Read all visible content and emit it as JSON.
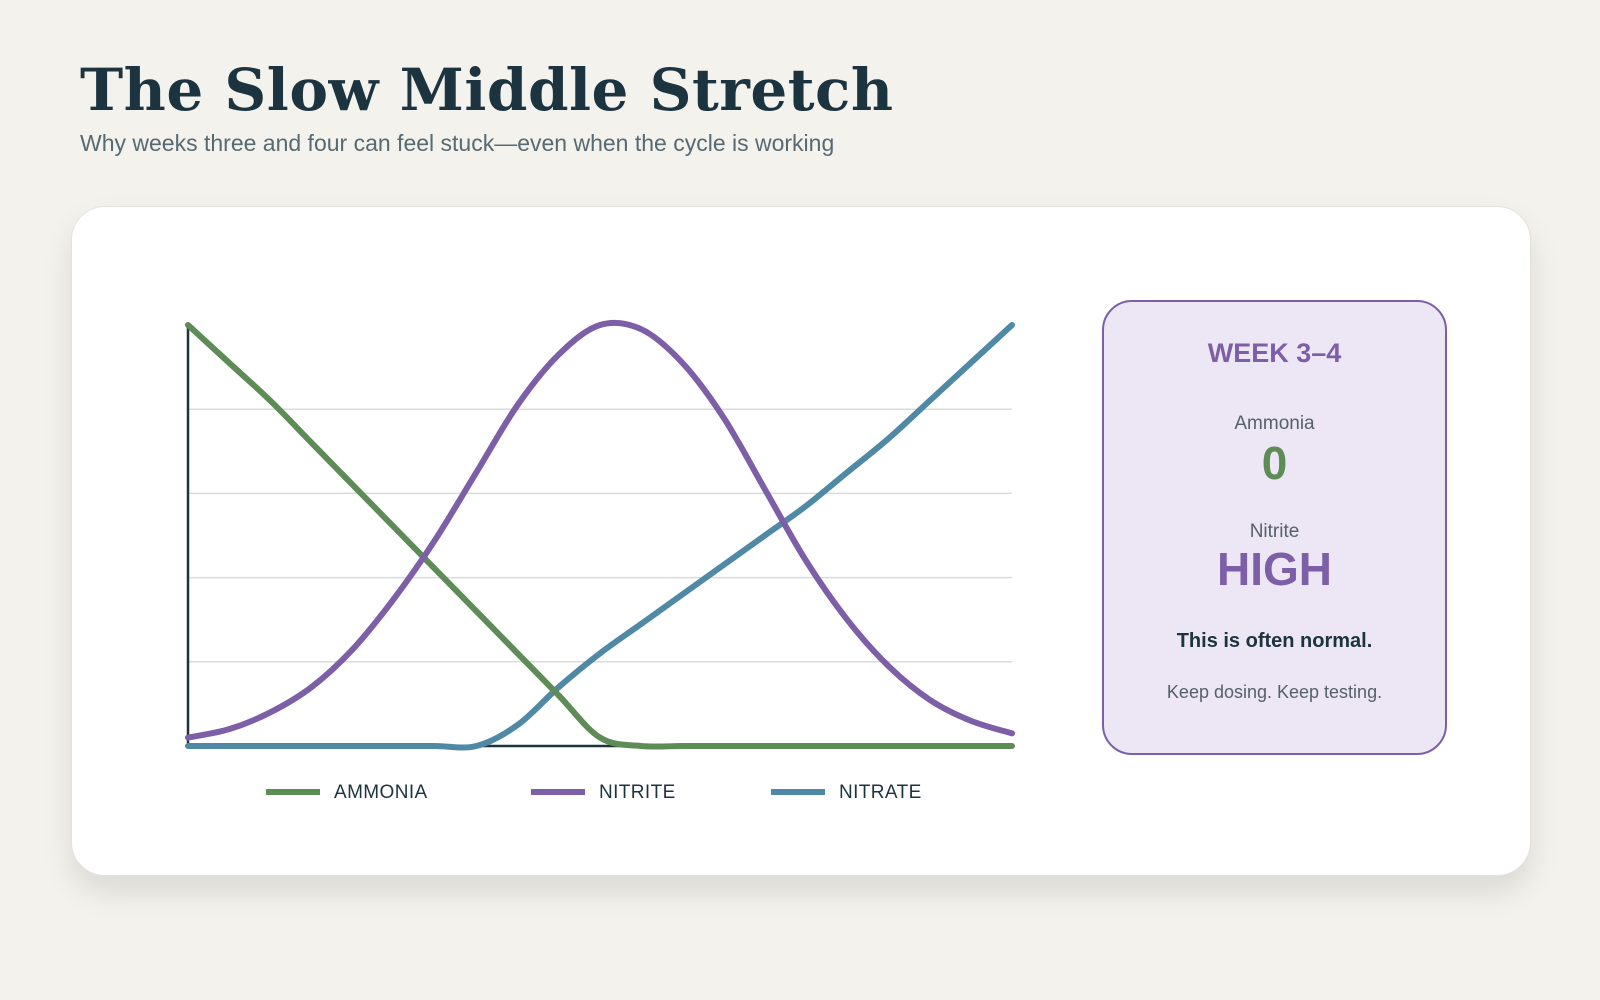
{
  "header": {
    "title": "The Slow Middle Stretch",
    "subtitle": "Why weeks three and four can feel stuck—even when the cycle is working"
  },
  "chart_data": {
    "type": "line",
    "title": "",
    "xlabel": "",
    "ylabel": "",
    "xlim": [
      0,
      1
    ],
    "ylim": [
      0,
      1
    ],
    "grid": true,
    "legend_position": "bottom",
    "x": [
      0,
      0.05,
      0.1,
      0.15,
      0.2,
      0.25,
      0.3,
      0.35,
      0.4,
      0.45,
      0.5,
      0.55,
      0.6,
      0.65,
      0.7,
      0.75,
      0.8,
      0.85,
      0.9,
      0.95,
      1.0
    ],
    "series": [
      {
        "name": "AMMONIA",
        "color": "#5e8c57",
        "values": [
          1.0,
          0.91,
          0.82,
          0.72,
          0.62,
          0.52,
          0.42,
          0.32,
          0.22,
          0.12,
          0.02,
          0,
          0,
          0,
          0,
          0,
          0,
          0,
          0,
          0,
          0
        ]
      },
      {
        "name": "NITRITE",
        "color": "#7d5fa8",
        "values": [
          0.02,
          0.04,
          0.08,
          0.14,
          0.23,
          0.35,
          0.49,
          0.65,
          0.81,
          0.93,
          1.0,
          0.99,
          0.91,
          0.78,
          0.61,
          0.44,
          0.3,
          0.19,
          0.11,
          0.06,
          0.03
        ]
      },
      {
        "name": "NITRATE",
        "color": "#4f89a6",
        "values": [
          0,
          0,
          0,
          0,
          0,
          0,
          0,
          0,
          0.05,
          0.14,
          0.22,
          0.29,
          0.36,
          0.43,
          0.5,
          0.57,
          0.65,
          0.73,
          0.82,
          0.91,
          1.0
        ]
      }
    ]
  },
  "legend": {
    "ammonia": "AMMONIA",
    "nitrite": "NITRITE",
    "nitrate": "NITRATE"
  },
  "panel": {
    "week": "WEEK 3–4",
    "ammonia_label": "Ammonia",
    "ammonia_value": "0",
    "nitrite_label": "Nitrite",
    "nitrite_value": "HIGH",
    "note_strong": "This is often normal.",
    "note": "Keep dosing. Keep testing."
  },
  "colors": {
    "ammonia": "#5e8c57",
    "nitrite": "#7d5fa8",
    "nitrate": "#4f89a6",
    "axis": "#1c3340",
    "grid": "#d8dcdc",
    "panel_bg": "#ede6f4"
  }
}
